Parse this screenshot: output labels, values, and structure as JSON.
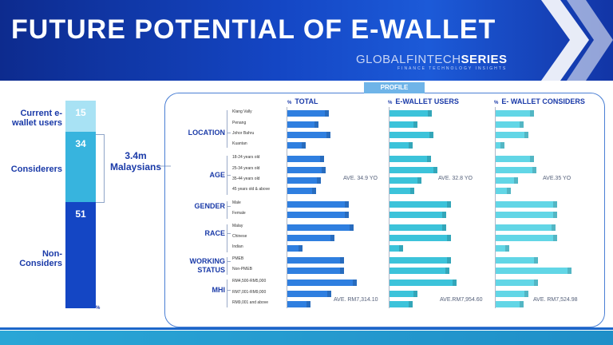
{
  "header": {
    "title": "FUTURE POTENTIAL OF E-WALLET",
    "brand_a": "GLOBALFINTECH",
    "brand_b": "SERIES",
    "brand_sub": "FINANCE TECHNOLOGY INSIGHTS"
  },
  "left": {
    "segments": [
      {
        "label": "Current e-wallet users",
        "value": 15,
        "color": "#a8e2f4"
      },
      {
        "label": "Considerers",
        "value": 34,
        "color": "#37b4de"
      },
      {
        "label": "Non-Considers",
        "value": 51,
        "color": "#1446c4"
      }
    ],
    "unit": "%",
    "callout": "3.4m Malaysians"
  },
  "profile_label": "PROFILE",
  "columns": [
    {
      "title": "TOTAL",
      "pct": "%",
      "color": "#2f7fe0"
    },
    {
      "title": "E-WALLET USERS",
      "pct": "%",
      "color": "#3cc3da"
    },
    {
      "title": "E- WALLET CONSIDERS",
      "pct": "%",
      "color": "#62d6e6"
    }
  ],
  "categories": [
    {
      "name": "LOCATION",
      "items": [
        "Klang Vally",
        "Penang",
        "Johor Bahru",
        "Kuantan"
      ]
    },
    {
      "name": "AGE",
      "items": [
        "18-24 years old",
        "25-34 years old",
        "35-44 years old",
        "45 years old & above"
      ]
    },
    {
      "name": "GENDER",
      "items": [
        "Male",
        "Female"
      ]
    },
    {
      "name": "RACE",
      "items": [
        "Malay",
        "Chinese",
        "Indian"
      ]
    },
    {
      "name": "WORKING STATUS",
      "items": [
        "PMEB",
        "Non-PMEB"
      ]
    },
    {
      "name": "MHI",
      "items": [
        "RM4,500-RM5,000",
        "RM7,001-RM9,000",
        "RM9,001 and above"
      ]
    }
  ],
  "averages": {
    "age": [
      "AVE. 34.9 YO",
      "AVE. 32.8 YO",
      "AVE.35 YO"
    ],
    "mhi": [
      "AVE. RM7,314.10",
      "AVE.RM7,954.60",
      "AVE. RM7,524.98"
    ]
  },
  "chart_data": {
    "type": "bar",
    "unit": "%",
    "composition": {
      "categories": [
        "Current e-wallet users",
        "Considerers",
        "Non-Considers"
      ],
      "values": [
        15,
        34,
        51
      ]
    },
    "series": [
      {
        "name": "TOTAL",
        "values": [
          39,
          28,
          41,
          15,
          34,
          36,
          31,
          26,
          60,
          60,
          65,
          45,
          12,
          55,
          55,
          68,
          42,
          20
        ]
      },
      {
        "name": "E-WALLET USERS",
        "values": [
          40,
          25,
          42,
          20,
          39,
          46,
          29,
          22,
          60,
          55,
          55,
          60,
          10,
          60,
          58,
          66,
          25,
          20
        ]
      },
      {
        "name": "E- WALLET CONSIDERS",
        "values": [
          36,
          25,
          30,
          5,
          36,
          38,
          19,
          12,
          60,
          60,
          58,
          60,
          10,
          40,
          75,
          40,
          30,
          25
        ]
      }
    ],
    "rows": [
      "Klang Vally",
      "Penang",
      "Johor Bahru",
      "Kuantan",
      "18-24 years old",
      "25-34 years old",
      "35-44 years old",
      "45 years old & above",
      "Male",
      "Female",
      "Malay",
      "Chinese",
      "Indian",
      "PMEB",
      "Non-PMEB",
      "RM4,500-RM5,000",
      "RM7,001-RM9,000",
      "RM9,001 and above"
    ],
    "xlim": [
      0,
      100
    ]
  }
}
